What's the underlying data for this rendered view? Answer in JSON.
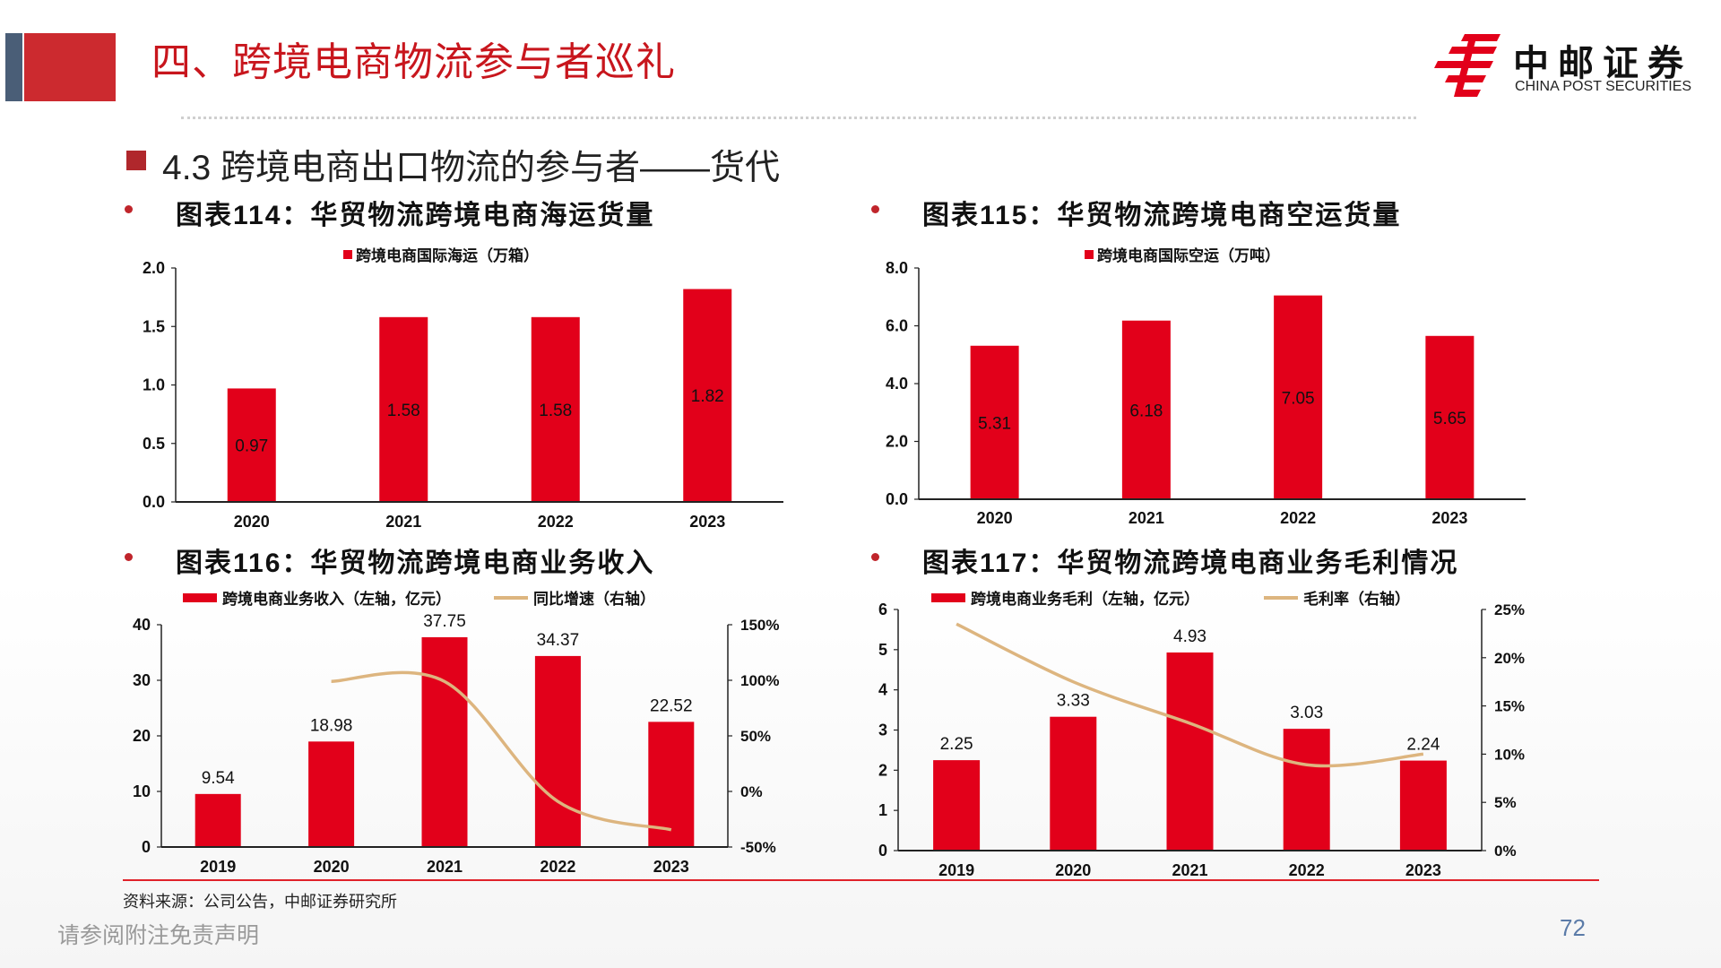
{
  "header": {
    "title": "四、跨境电商物流参与者巡礼",
    "logo_cn": "中邮证券",
    "logo_en": "CHINA POST SECURITIES"
  },
  "section": {
    "title": "4.3 跨境电商出口物流的参与者——货代"
  },
  "colors": {
    "bar": "#e2001a",
    "line": "#ddb57f",
    "title_red": "#c8161d",
    "accent_blue": "#4a5e77"
  },
  "chart_data": [
    {
      "type": "bar",
      "title": "图表114：华贸物流跨境电商海运货量",
      "legend": [
        "跨境电商国际海运（万箱）"
      ],
      "categories": [
        "2020",
        "2021",
        "2022",
        "2023"
      ],
      "values": [
        0.97,
        1.58,
        1.58,
        1.82
      ],
      "value_labels": [
        "0.97",
        "1.58",
        "1.58",
        "1.82"
      ],
      "ylim": [
        0,
        2.0
      ],
      "yticks": [
        "0.0",
        "0.5",
        "1.0",
        "1.5",
        "2.0"
      ]
    },
    {
      "type": "bar",
      "title": "图表115：华贸物流跨境电商空运货量",
      "legend": [
        "跨境电商国际空运（万吨）"
      ],
      "categories": [
        "2020",
        "2021",
        "2022",
        "2023"
      ],
      "values": [
        5.31,
        6.18,
        7.05,
        5.65
      ],
      "value_labels": [
        "5.31",
        "6.18",
        "7.05",
        "5.65"
      ],
      "ylim": [
        0,
        8.0
      ],
      "yticks": [
        "0.0",
        "2.0",
        "4.0",
        "6.0",
        "8.0"
      ]
    },
    {
      "type": "bar",
      "title": "图表116：华贸物流跨境电商业务收入",
      "legend": [
        "跨境电商业务收入（左轴，亿元）",
        "同比增速（右轴）"
      ],
      "categories": [
        "2019",
        "2020",
        "2021",
        "2022",
        "2023"
      ],
      "values": [
        9.54,
        18.98,
        37.75,
        34.37,
        22.52
      ],
      "value_labels": [
        "9.54",
        "18.98",
        "37.75",
        "34.37",
        "22.52"
      ],
      "ylim": [
        0,
        40
      ],
      "yticks": [
        "0",
        "10",
        "20",
        "30",
        "40"
      ],
      "line_series": {
        "name": "同比增速（右轴）",
        "values": [
          null,
          99,
          98.9,
          -9,
          -34.5
        ]
      },
      "y2lim": [
        -50,
        150
      ],
      "y2ticks": [
        "-50%",
        "0%",
        "50%",
        "100%",
        "150%"
      ]
    },
    {
      "type": "bar",
      "title": "图表117：华贸物流跨境电商业务毛利情况",
      "legend": [
        "跨境电商业务毛利（左轴，亿元）",
        "毛利率（右轴）"
      ],
      "categories": [
        "2019",
        "2020",
        "2021",
        "2022",
        "2023"
      ],
      "values": [
        2.25,
        3.33,
        4.93,
        3.03,
        2.24
      ],
      "value_labels": [
        "2.25",
        "3.33",
        "4.93",
        "3.03",
        "2.24"
      ],
      "ylim": [
        0,
        6
      ],
      "yticks": [
        "0",
        "1",
        "2",
        "3",
        "4",
        "5",
        "6"
      ],
      "line_series": {
        "name": "毛利率（右轴）",
        "values": [
          23.5,
          17.5,
          13.2,
          8.9,
          10.0
        ]
      },
      "y2lim": [
        0,
        25
      ],
      "y2ticks": [
        "0%",
        "5%",
        "10%",
        "15%",
        "20%",
        "25%"
      ]
    }
  ],
  "footer": {
    "source": "资料来源：公司公告，中邮证券研究所",
    "disclaimer": "请参阅附注免责声明",
    "page_number": "72"
  }
}
